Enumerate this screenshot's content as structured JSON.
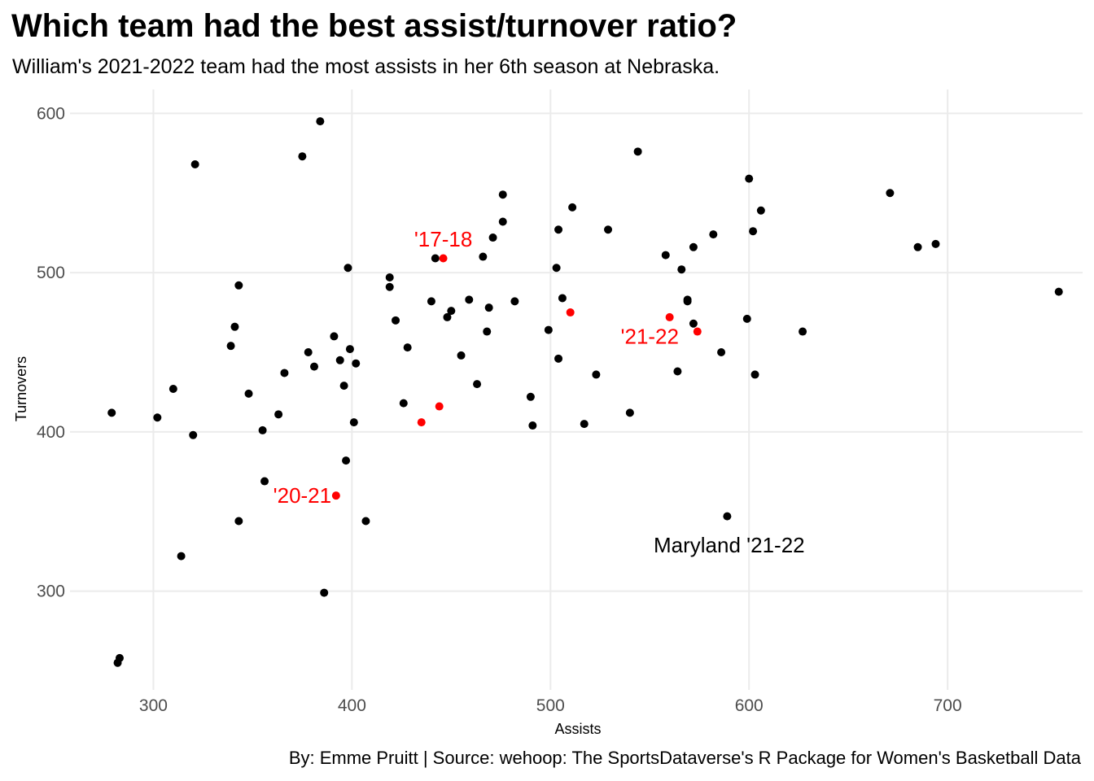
{
  "title": "Which team had the best assist/turnover ratio?",
  "subtitle": "William's 2021-2022 team had the most assists in her 6th season at Nebraska.",
  "caption": "By: Emme Pruitt  |  Source: wehoop: The SportsDataverse's R Package for Women's Basketball Data",
  "colors": {
    "highlight": "#ff0000",
    "point": "#000000",
    "grid": "#ebebeb"
  },
  "chart_data": {
    "type": "scatter",
    "xlabel": "Assists",
    "ylabel": "Turnovers",
    "xlim": [
      258,
      768
    ],
    "ylim": [
      238,
      615
    ],
    "xticks": [
      300,
      400,
      500,
      600,
      700
    ],
    "yticks": [
      300,
      400,
      500,
      600
    ],
    "grid": true,
    "points": [
      {
        "x": 279,
        "y": 412
      },
      {
        "x": 282,
        "y": 255
      },
      {
        "x": 283,
        "y": 258
      },
      {
        "x": 302,
        "y": 409
      },
      {
        "x": 310,
        "y": 427
      },
      {
        "x": 314,
        "y": 322
      },
      {
        "x": 320,
        "y": 398
      },
      {
        "x": 321,
        "y": 568
      },
      {
        "x": 339,
        "y": 454
      },
      {
        "x": 341,
        "y": 466
      },
      {
        "x": 343,
        "y": 492
      },
      {
        "x": 343,
        "y": 344
      },
      {
        "x": 348,
        "y": 424
      },
      {
        "x": 355,
        "y": 401
      },
      {
        "x": 356,
        "y": 369
      },
      {
        "x": 363,
        "y": 411
      },
      {
        "x": 366,
        "y": 437
      },
      {
        "x": 375,
        "y": 573
      },
      {
        "x": 378,
        "y": 450
      },
      {
        "x": 381,
        "y": 441
      },
      {
        "x": 384,
        "y": 595
      },
      {
        "x": 386,
        "y": 299
      },
      {
        "x": 391,
        "y": 460
      },
      {
        "x": 394,
        "y": 445
      },
      {
        "x": 396,
        "y": 429
      },
      {
        "x": 397,
        "y": 382
      },
      {
        "x": 398,
        "y": 503
      },
      {
        "x": 399,
        "y": 452
      },
      {
        "x": 401,
        "y": 406
      },
      {
        "x": 402,
        "y": 443
      },
      {
        "x": 407,
        "y": 344
      },
      {
        "x": 419,
        "y": 497
      },
      {
        "x": 419,
        "y": 491
      },
      {
        "x": 422,
        "y": 470
      },
      {
        "x": 426,
        "y": 418
      },
      {
        "x": 428,
        "y": 453
      },
      {
        "x": 440,
        "y": 482
      },
      {
        "x": 442,
        "y": 509
      },
      {
        "x": 448,
        "y": 472
      },
      {
        "x": 450,
        "y": 476
      },
      {
        "x": 455,
        "y": 448
      },
      {
        "x": 459,
        "y": 483
      },
      {
        "x": 463,
        "y": 430
      },
      {
        "x": 466,
        "y": 510
      },
      {
        "x": 468,
        "y": 463
      },
      {
        "x": 469,
        "y": 478
      },
      {
        "x": 471,
        "y": 522
      },
      {
        "x": 476,
        "y": 532
      },
      {
        "x": 476,
        "y": 549
      },
      {
        "x": 482,
        "y": 482
      },
      {
        "x": 490,
        "y": 422
      },
      {
        "x": 491,
        "y": 404
      },
      {
        "x": 499,
        "y": 464
      },
      {
        "x": 503,
        "y": 503
      },
      {
        "x": 504,
        "y": 527
      },
      {
        "x": 504,
        "y": 446
      },
      {
        "x": 506,
        "y": 484
      },
      {
        "x": 511,
        "y": 541
      },
      {
        "x": 517,
        "y": 405
      },
      {
        "x": 523,
        "y": 436
      },
      {
        "x": 529,
        "y": 527
      },
      {
        "x": 540,
        "y": 412
      },
      {
        "x": 544,
        "y": 576
      },
      {
        "x": 558,
        "y": 511
      },
      {
        "x": 564,
        "y": 438
      },
      {
        "x": 566,
        "y": 502
      },
      {
        "x": 569,
        "y": 482
      },
      {
        "x": 569,
        "y": 483
      },
      {
        "x": 572,
        "y": 516
      },
      {
        "x": 572,
        "y": 468
      },
      {
        "x": 582,
        "y": 524
      },
      {
        "x": 586,
        "y": 450
      },
      {
        "x": 589,
        "y": 347
      },
      {
        "x": 599,
        "y": 471
      },
      {
        "x": 600,
        "y": 559
      },
      {
        "x": 602,
        "y": 526
      },
      {
        "x": 603,
        "y": 436
      },
      {
        "x": 606,
        "y": 539
      },
      {
        "x": 627,
        "y": 463
      },
      {
        "x": 671,
        "y": 550
      },
      {
        "x": 685,
        "y": 516
      },
      {
        "x": 694,
        "y": 518
      },
      {
        "x": 756,
        "y": 488
      }
    ],
    "highlight_points": [
      {
        "x": 446,
        "y": 509
      },
      {
        "x": 510,
        "y": 475
      },
      {
        "x": 560,
        "y": 472
      },
      {
        "x": 574,
        "y": 463
      },
      {
        "x": 435,
        "y": 406
      },
      {
        "x": 444,
        "y": 416
      },
      {
        "x": 392,
        "y": 360
      }
    ],
    "annotations": [
      {
        "text": "'17-18",
        "x": 446,
        "y": 521,
        "color": "#ff0000"
      },
      {
        "text": "'21-22",
        "x": 550,
        "y": 460,
        "color": "#ff0000"
      },
      {
        "text": "'20-21",
        "x": 375,
        "y": 360,
        "color": "#ff0000"
      },
      {
        "text": "Maryland '21-22",
        "x": 590,
        "y": 329,
        "color": "#000000"
      }
    ]
  }
}
